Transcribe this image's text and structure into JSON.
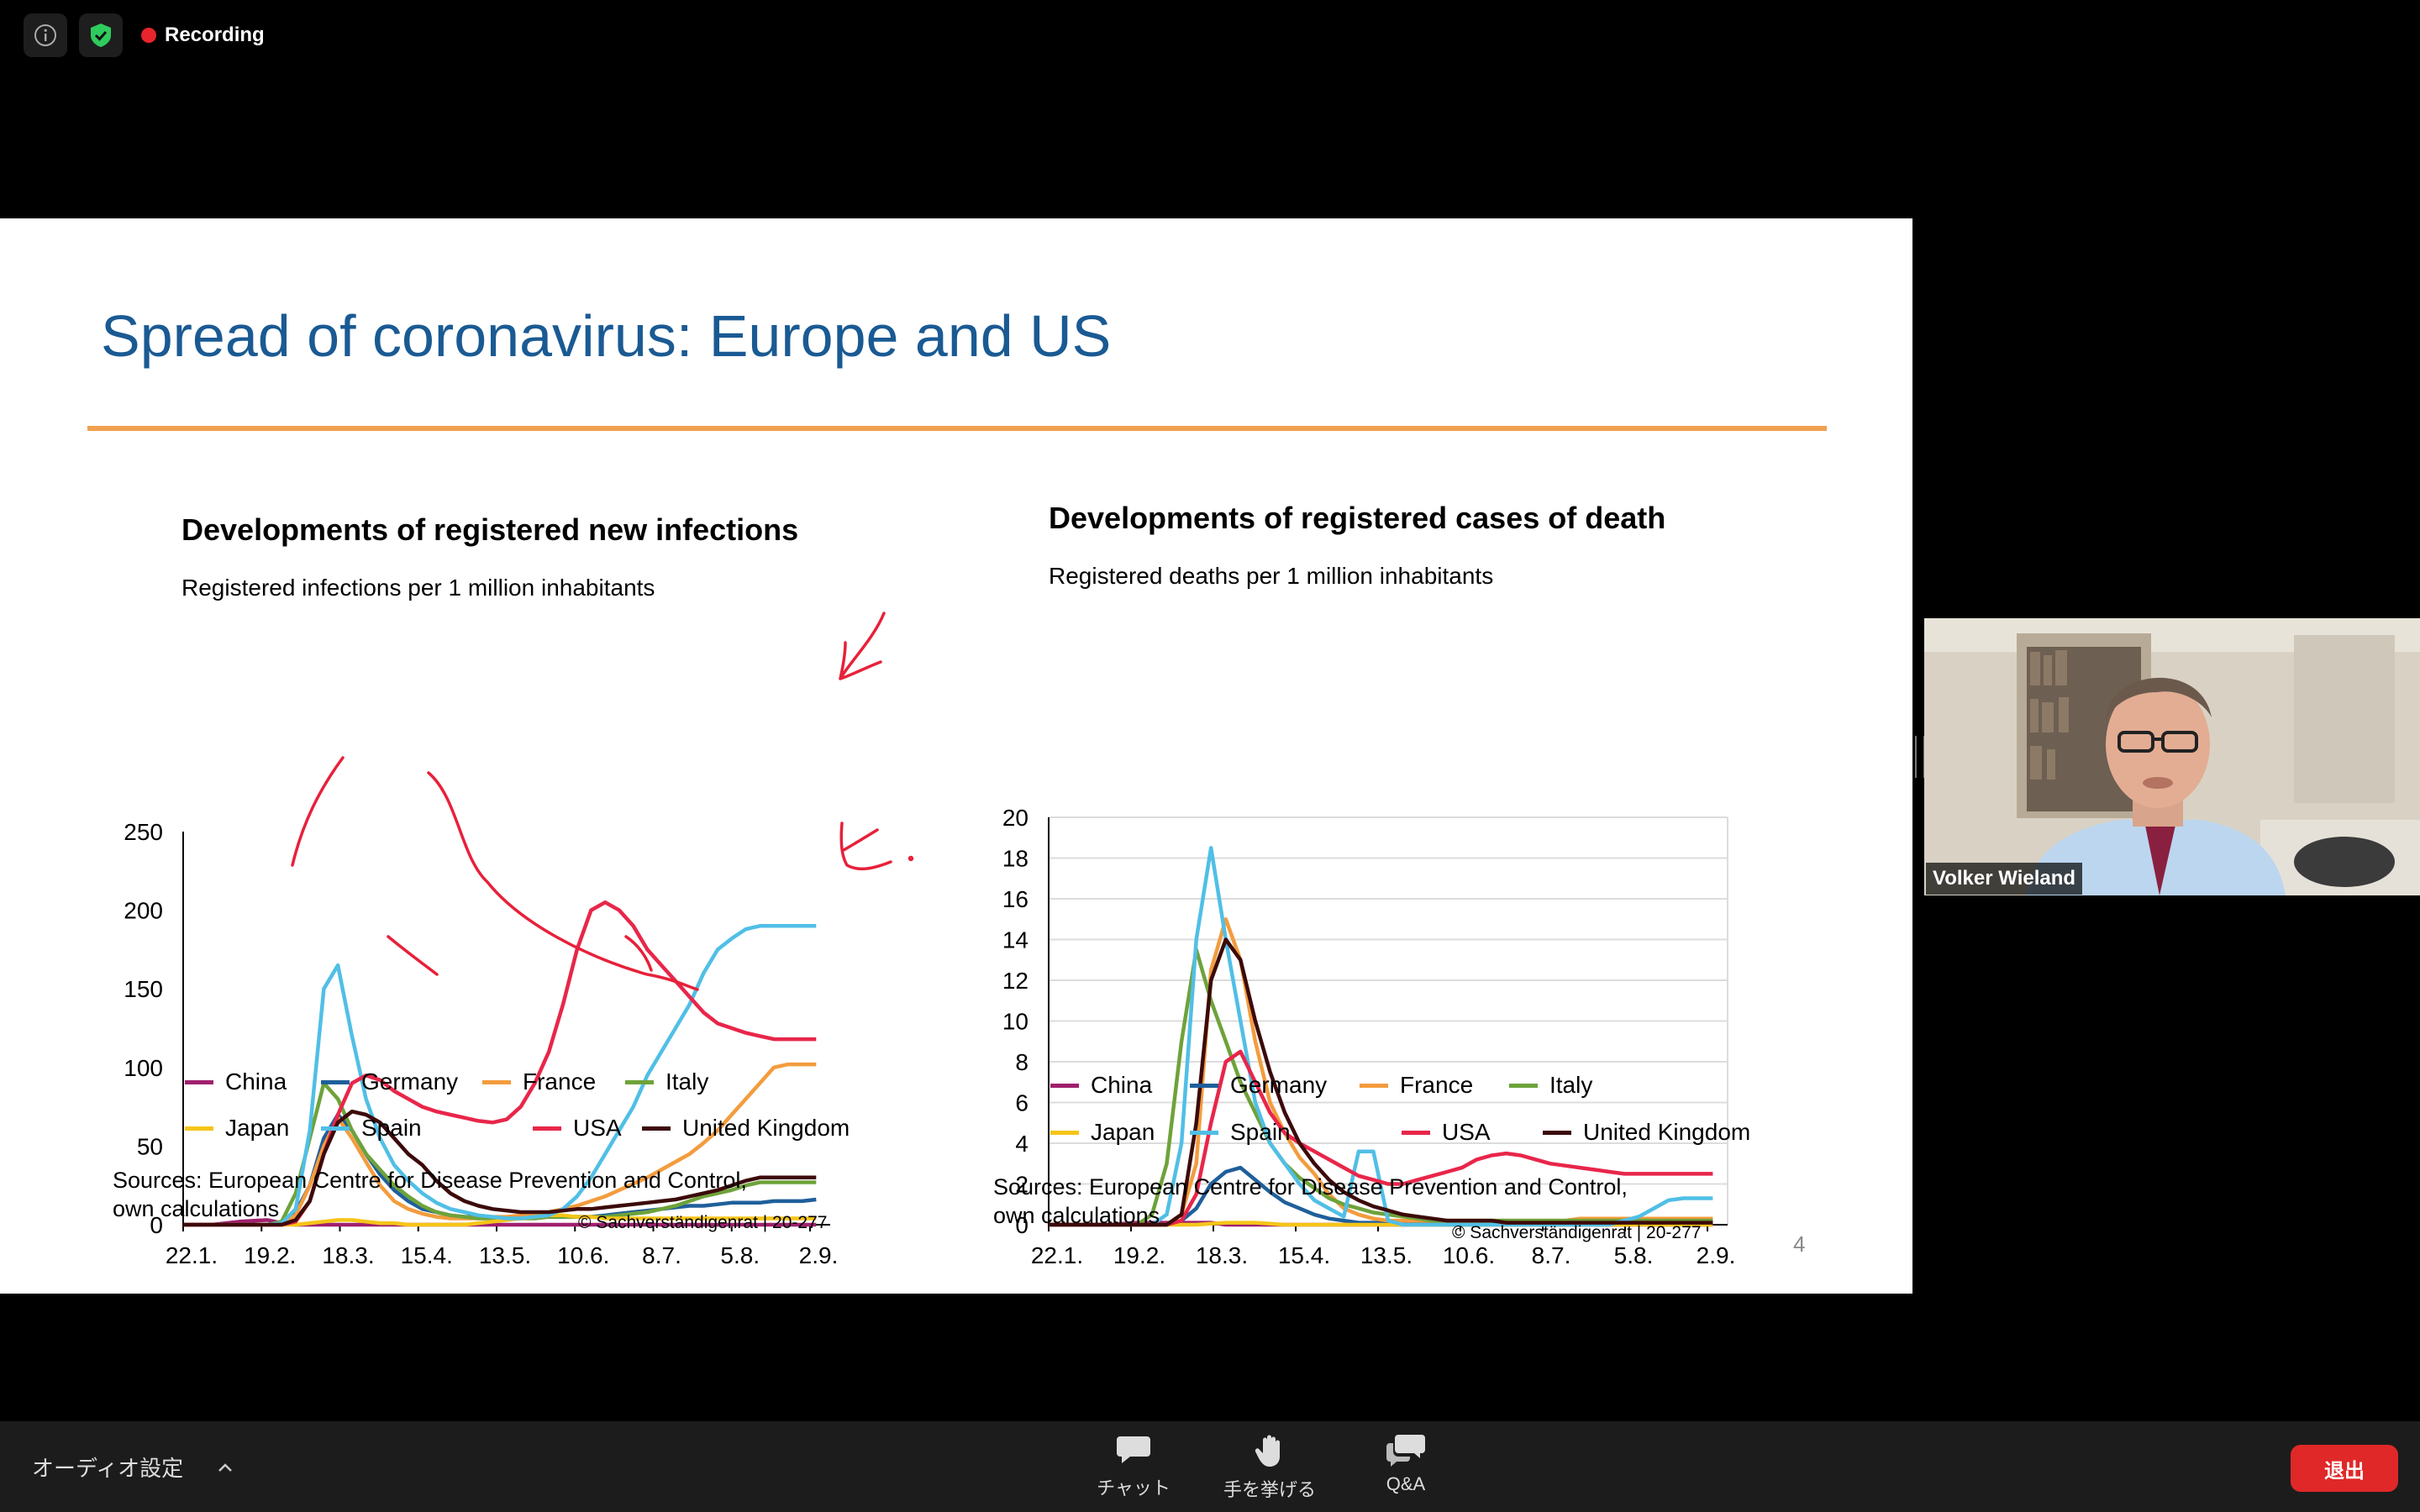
{
  "topbar": {
    "recording_label": "Recording"
  },
  "slide": {
    "title": "Spread of coronavirus: Europe and US",
    "page_number": "4",
    "left": {
      "title": "Developments of registered new infections",
      "subtitle": "Registered infections per 1 million inhabitants",
      "sources_line1": "Sources: European Centre for Disease Prevention and Control,",
      "sources_line2": "own calculations",
      "copyright": "© Sachverständigenrat | 20-277"
    },
    "right": {
      "title": "Developments of registered cases of death",
      "subtitle": "Registered deaths per 1 million inhabitants",
      "sources_line1": "Sources: European Centre for Disease Prevention and Control,",
      "sources_line2": "own calculations",
      "copyright": "© Sachverständigenrat | 20-277"
    },
    "legend": [
      {
        "name": "China",
        "color": "#a0206e"
      },
      {
        "name": "Germany",
        "color": "#1f5f9b"
      },
      {
        "name": "France",
        "color": "#f39c3e"
      },
      {
        "name": "Italy",
        "color": "#6ea23a"
      },
      {
        "name": "Japan",
        "color": "#f5c518"
      },
      {
        "name": "Spain",
        "color": "#50bfe6"
      },
      {
        "name": "USA",
        "color": "#e8264a"
      },
      {
        "name": "United Kingdom",
        "color": "#3c0a0a"
      }
    ]
  },
  "chart_data": [
    {
      "type": "line",
      "title": "Developments of registered new infections",
      "ylabel": "Registered infections per 1 million inhabitants",
      "ylim": [
        0,
        250
      ],
      "yticks": [
        "0",
        "50",
        "100",
        "150",
        "200",
        "250"
      ],
      "xticks": [
        "22.1.",
        "19.2.",
        "18.3.",
        "15.4.",
        "13.5.",
        "10.6.",
        "8.7.",
        "5.8.",
        "2.9."
      ],
      "x": [
        0,
        10,
        20,
        30,
        35,
        40,
        45,
        50,
        55,
        60,
        65,
        70,
        75,
        80,
        85,
        90,
        95,
        100,
        105,
        110,
        115,
        120,
        125,
        130,
        135,
        140,
        145,
        150,
        155,
        160,
        165,
        170,
        175,
        180,
        185,
        190,
        195,
        200,
        205,
        210,
        215,
        220,
        225
      ],
      "series": [
        {
          "name": "China",
          "values": [
            0,
            0,
            2,
            3,
            1,
            0,
            0,
            0,
            0,
            0,
            0,
            0,
            0,
            0,
            0,
            0,
            0,
            0,
            0,
            0,
            0,
            0,
            0,
            0,
            0,
            0,
            0,
            0,
            0,
            0,
            0,
            0,
            0,
            0,
            0,
            0,
            0,
            0,
            0,
            0,
            0,
            0,
            0
          ]
        },
        {
          "name": "Germany",
          "values": [
            0,
            0,
            0,
            0,
            2,
            8,
            25,
            55,
            70,
            60,
            45,
            32,
            22,
            15,
            10,
            8,
            6,
            5,
            5,
            4,
            4,
            4,
            5,
            5,
            5,
            5,
            5,
            6,
            7,
            8,
            9,
            10,
            11,
            12,
            12,
            13,
            14,
            14,
            14,
            15,
            15,
            15,
            16
          ]
        },
        {
          "name": "France",
          "values": [
            0,
            0,
            0,
            0,
            1,
            6,
            25,
            50,
            68,
            55,
            40,
            25,
            15,
            10,
            7,
            5,
            4,
            4,
            4,
            5,
            5,
            6,
            7,
            8,
            10,
            12,
            15,
            18,
            22,
            26,
            30,
            35,
            40,
            45,
            52,
            60,
            70,
            80,
            90,
            100,
            102,
            102,
            102
          ]
        },
        {
          "name": "Italy",
          "values": [
            0,
            0,
            0,
            0,
            2,
            20,
            55,
            90,
            80,
            60,
            45,
            35,
            25,
            18,
            12,
            8,
            6,
            5,
            4,
            4,
            4,
            4,
            4,
            5,
            5,
            5,
            5,
            5,
            6,
            7,
            8,
            10,
            12,
            15,
            18,
            20,
            22,
            25,
            27,
            27,
            27,
            27,
            27
          ]
        },
        {
          "name": "Japan",
          "values": [
            0,
            0,
            0,
            0,
            0,
            0,
            1,
            2,
            3,
            3,
            2,
            1,
            1,
            0,
            0,
            0,
            0,
            0,
            1,
            2,
            3,
            4,
            5,
            6,
            6,
            5,
            5,
            4,
            4,
            4,
            4,
            4,
            4,
            4,
            4,
            4,
            4,
            4,
            4,
            4,
            4,
            4,
            4
          ]
        },
        {
          "name": "Spain",
          "values": [
            0,
            0,
            0,
            0,
            1,
            10,
            60,
            150,
            165,
            120,
            80,
            55,
            38,
            28,
            20,
            14,
            10,
            8,
            6,
            5,
            4,
            4,
            5,
            6,
            10,
            18,
            30,
            45,
            60,
            75,
            95,
            110,
            125,
            140,
            160,
            175,
            182,
            188,
            190,
            190,
            190,
            190,
            190
          ]
        },
        {
          "name": "USA",
          "values": [
            0,
            0,
            0,
            0,
            0,
            2,
            15,
            45,
            70,
            90,
            95,
            92,
            85,
            80,
            75,
            72,
            70,
            68,
            66,
            65,
            67,
            75,
            90,
            110,
            140,
            175,
            200,
            205,
            200,
            190,
            175,
            165,
            155,
            145,
            135,
            128,
            125,
            122,
            120,
            118,
            118,
            118,
            118
          ]
        },
        {
          "name": "United Kingdom",
          "values": [
            0,
            0,
            0,
            0,
            0,
            3,
            15,
            45,
            65,
            72,
            70,
            65,
            55,
            45,
            38,
            28,
            20,
            15,
            12,
            10,
            9,
            8,
            8,
            8,
            9,
            10,
            10,
            11,
            12,
            13,
            14,
            15,
            16,
            18,
            20,
            22,
            25,
            28,
            30,
            30,
            30,
            30,
            30
          ]
        }
      ]
    },
    {
      "type": "line",
      "title": "Developments of registered cases of death",
      "ylabel": "Registered deaths per 1 million inhabitants",
      "ylim": [
        0,
        20
      ],
      "yticks": [
        "0",
        "2",
        "4",
        "6",
        "8",
        "10",
        "12",
        "14",
        "16",
        "18",
        "20"
      ],
      "xticks": [
        "22.1.",
        "19.2.",
        "18.3.",
        "15.4.",
        "13.5.",
        "10.6.",
        "8.7.",
        "5.8.",
        "2.9."
      ],
      "x": [
        0,
        10,
        20,
        30,
        35,
        40,
        45,
        50,
        55,
        60,
        65,
        70,
        75,
        80,
        85,
        90,
        95,
        100,
        105,
        110,
        115,
        120,
        125,
        130,
        135,
        140,
        145,
        150,
        155,
        160,
        165,
        170,
        175,
        180,
        185,
        190,
        195,
        200,
        205,
        210,
        215,
        220,
        225
      ],
      "series": [
        {
          "name": "China",
          "values": [
            0,
            0,
            0,
            0.1,
            0.1,
            0.1,
            0.1,
            0.1,
            0.1,
            0,
            0,
            0,
            0,
            0,
            0,
            0,
            0,
            0,
            0,
            0,
            0,
            0,
            0,
            0,
            0,
            0,
            0,
            0,
            0,
            0,
            0,
            0,
            0,
            0,
            0,
            0,
            0,
            0,
            0,
            0,
            0,
            0,
            0
          ]
        },
        {
          "name": "Germany",
          "values": [
            0,
            0,
            0,
            0,
            0,
            0,
            0.2,
            0.8,
            2.0,
            2.6,
            2.8,
            2.2,
            1.6,
            1.1,
            0.8,
            0.5,
            0.3,
            0.2,
            0.1,
            0.1,
            0.1,
            0.1,
            0.1,
            0.1,
            0.1,
            0.1,
            0.1,
            0.1,
            0.1,
            0.1,
            0.1,
            0.1,
            0.1,
            0.1,
            0.1,
            0.1,
            0.1,
            0.1,
            0.1,
            0.1,
            0.1,
            0.1,
            0.1
          ]
        },
        {
          "name": "France",
          "values": [
            0,
            0,
            0,
            0,
            0,
            0,
            0.5,
            3.0,
            12.5,
            15.0,
            13.0,
            9.0,
            6.0,
            4.5,
            3.3,
            2.5,
            1.5,
            0.8,
            0.5,
            0.3,
            0.2,
            0.2,
            0.2,
            0.2,
            0.2,
            0.2,
            0.2,
            0.2,
            0.2,
            0.2,
            0.2,
            0.2,
            0.2,
            0.3,
            0.3,
            0.3,
            0.3,
            0.3,
            0.3,
            0.3,
            0.3,
            0.3,
            0.3
          ]
        },
        {
          "name": "Italy",
          "values": [
            0,
            0,
            0,
            0,
            0.5,
            3.0,
            9.0,
            13.5,
            11.0,
            9.0,
            7.0,
            5.5,
            4.0,
            3.0,
            2.3,
            1.8,
            1.3,
            1.0,
            0.8,
            0.6,
            0.5,
            0.4,
            0.3,
            0.2,
            0.2,
            0.2,
            0.2,
            0.2,
            0.2,
            0.2,
            0.2,
            0.2,
            0.2,
            0.2,
            0.2,
            0.2,
            0.2,
            0.2,
            0.2,
            0.2,
            0.2,
            0.2,
            0.2
          ]
        },
        {
          "name": "Japan",
          "values": [
            0,
            0,
            0,
            0,
            0,
            0,
            0,
            0,
            0.05,
            0.1,
            0.1,
            0.1,
            0.05,
            0,
            0,
            0,
            0,
            0,
            0,
            0,
            0,
            0,
            0,
            0,
            0,
            0,
            0,
            0,
            0,
            0,
            0,
            0,
            0,
            0,
            0,
            0,
            0,
            0,
            0,
            0,
            0,
            0,
            0
          ]
        },
        {
          "name": "Spain",
          "values": [
            0,
            0,
            0,
            0,
            0,
            0.5,
            4.0,
            14.0,
            18.5,
            14.0,
            10.0,
            6.0,
            4.0,
            3.0,
            2.0,
            1.2,
            0.8,
            0.4,
            3.6,
            3.6,
            0.2,
            0,
            0,
            0,
            0,
            0,
            0,
            0,
            0,
            0,
            0,
            0,
            0,
            0,
            0,
            0,
            0.2,
            0.4,
            0.8,
            1.2,
            1.3,
            1.3,
            1.3
          ]
        },
        {
          "name": "USA",
          "values": [
            0,
            0,
            0,
            0,
            0,
            0,
            0.2,
            1.5,
            5.0,
            8.0,
            8.5,
            7.0,
            5.5,
            4.5,
            4.0,
            3.6,
            3.2,
            2.8,
            2.4,
            2.2,
            2.0,
            2.0,
            2.2,
            2.4,
            2.6,
            2.8,
            3.2,
            3.4,
            3.5,
            3.4,
            3.2,
            3.0,
            2.9,
            2.8,
            2.7,
            2.6,
            2.5,
            2.5,
            2.5,
            2.5,
            2.5,
            2.5,
            2.5
          ]
        },
        {
          "name": "United Kingdom",
          "values": [
            0,
            0,
            0,
            0,
            0,
            0,
            0.5,
            5.0,
            12.0,
            14.0,
            13.0,
            10.0,
            7.5,
            5.5,
            4.0,
            3.0,
            2.2,
            1.6,
            1.2,
            0.9,
            0.7,
            0.5,
            0.4,
            0.3,
            0.2,
            0.2,
            0.2,
            0.2,
            0.1,
            0.1,
            0.1,
            0.1,
            0.1,
            0.1,
            0.1,
            0.1,
            0.1,
            0.1,
            0.1,
            0.1,
            0.1,
            0.1,
            0.1
          ]
        }
      ]
    }
  ],
  "presenter": {
    "name": "Volker Wieland"
  },
  "bottombar": {
    "audio_label": "オーディオ設定",
    "chat_label": "チャット",
    "raise_hand_label": "手を挙げる",
    "qa_label": "Q&A",
    "leave_label": "退出"
  }
}
